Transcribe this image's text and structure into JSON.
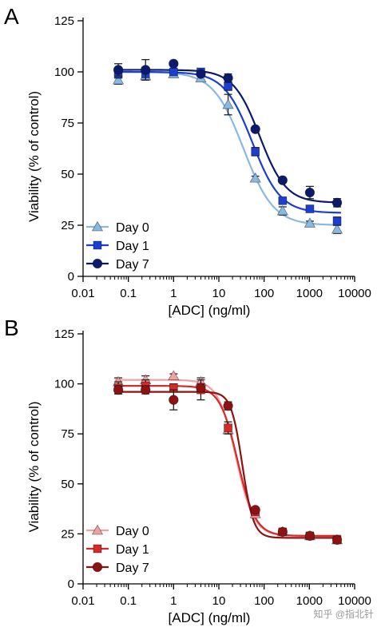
{
  "watermark": "知乎 @指北针",
  "chart_data": [
    {
      "panel": "A",
      "type": "scatter",
      "xlabel": "[ADC] (ng/ml)",
      "ylabel": "Viability (% of control)",
      "xscale": "log",
      "xlim": [
        0.01,
        10000
      ],
      "ylim": [
        0,
        125
      ],
      "xticks": [
        "0.01",
        "0.1",
        "1",
        "10",
        "100",
        "1000",
        "10000"
      ],
      "yticks": [
        "0",
        "25",
        "50",
        "75",
        "100",
        "125"
      ],
      "legend_position": "bottom-left",
      "grid": false,
      "x": [
        0.06,
        0.24,
        1,
        4,
        16,
        64,
        256,
        1024,
        4096
      ],
      "series": [
        {
          "name": "Day 0",
          "marker": "triangle",
          "color": "#89b8e0",
          "values": [
            96,
            98,
            99,
            97,
            84,
            48,
            32,
            26,
            23
          ],
          "errors": [
            2,
            2,
            1,
            1,
            5,
            1,
            2,
            1,
            2
          ],
          "fit": {
            "top": 100,
            "bottom": 25,
            "ec50": 35,
            "hill": 1.3
          }
        },
        {
          "name": "Day 1",
          "marker": "square",
          "color": "#1c3fd0",
          "values": [
            99,
            99,
            100,
            100,
            93,
            61,
            37,
            33,
            27
          ],
          "errors": [
            2,
            3,
            1,
            1,
            2,
            2,
            1,
            1,
            2
          ],
          "fit": {
            "top": 100,
            "bottom": 31,
            "ec50": 55,
            "hill": 1.4
          }
        },
        {
          "name": "Day 7",
          "marker": "circle",
          "color": "#0b1a6b",
          "values": [
            101,
            101,
            104,
            99,
            97,
            72,
            47,
            41,
            36
          ],
          "errors": [
            3,
            5,
            1,
            1,
            2,
            1,
            1,
            3,
            2
          ],
          "fit": {
            "top": 101,
            "bottom": 36,
            "ec50": 80,
            "hill": 1.5
          }
        }
      ]
    },
    {
      "panel": "B",
      "type": "scatter",
      "xlabel": "[ADC] (ng/ml)",
      "ylabel": "Viability (% of control)",
      "xscale": "log",
      "xlim": [
        0.01,
        10000
      ],
      "ylim": [
        0,
        125
      ],
      "xticks": [
        "0.01",
        "0.1",
        "1",
        "10",
        "100",
        "1000",
        "10000"
      ],
      "yticks": [
        "0",
        "25",
        "50",
        "75",
        "100",
        "125"
      ],
      "legend_position": "bottom-left",
      "grid": false,
      "x": [
        0.06,
        0.24,
        1,
        4,
        16,
        64,
        256,
        1024,
        4096
      ],
      "series": [
        {
          "name": "Day 0",
          "marker": "triangle",
          "color": "#f0a0a0",
          "values": [
            101,
            102,
            104,
            101,
            77,
            35,
            26,
            24,
            22
          ],
          "errors": [
            2,
            2,
            1,
            2,
            2,
            1,
            1,
            1,
            1
          ],
          "fit": {
            "top": 102,
            "bottom": 24,
            "ec50": 24,
            "hill": 2.2
          }
        },
        {
          "name": "Day 1",
          "marker": "square",
          "color": "#d42a2a",
          "values": [
            98,
            99,
            98,
            97,
            78,
            36,
            26,
            24,
            22
          ],
          "errors": [
            3,
            3,
            2,
            5,
            3,
            1,
            1,
            1,
            1
          ],
          "fit": {
            "top": 99,
            "bottom": 24,
            "ec50": 26,
            "hill": 2.2
          }
        },
        {
          "name": "Day 7",
          "marker": "circle",
          "color": "#8e1212",
          "values": [
            97,
            97,
            92,
            98,
            89,
            37,
            26,
            24,
            22
          ],
          "errors": [
            2,
            2,
            5,
            2,
            2,
            1,
            1,
            1,
            1
          ],
          "fit": {
            "top": 96,
            "bottom": 23,
            "ec50": 33,
            "hill": 3.5
          }
        }
      ]
    }
  ]
}
